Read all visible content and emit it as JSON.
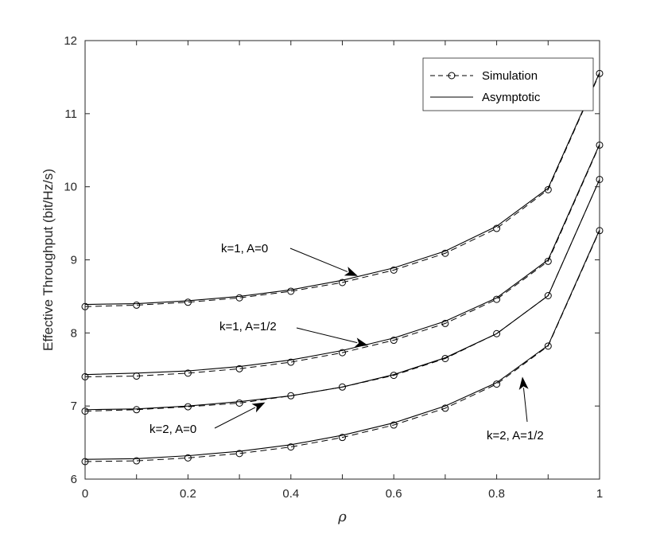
{
  "chart_data": {
    "type": "line",
    "xlabel": "ρ",
    "ylabel": "Effective Throughput (bit/Hz/s)",
    "xlim": [
      0,
      1
    ],
    "ylim": [
      6,
      12
    ],
    "xticks": [
      0,
      0.1,
      0.2,
      0.3,
      0.4,
      0.5,
      0.6,
      0.7,
      0.8,
      0.9,
      1
    ],
    "xtick_labels": [
      "0",
      "",
      "0.2",
      "",
      "0.4",
      "",
      "0.6",
      "",
      "0.8",
      "",
      "1"
    ],
    "yticks": [
      6,
      7,
      8,
      9,
      10,
      11,
      12
    ],
    "ytick_labels": [
      "6",
      "7",
      "8",
      "9",
      "10",
      "11",
      "12"
    ],
    "grid": false,
    "legend_position": "top-right",
    "legend": [
      {
        "label": "Simulation",
        "style": "dashed-circle"
      },
      {
        "label": "Asymptotic",
        "style": "solid"
      }
    ],
    "x": [
      0,
      0.1,
      0.2,
      0.3,
      0.4,
      0.5,
      0.6,
      0.7,
      0.8,
      0.9,
      1
    ],
    "curves": [
      {
        "annotation": "k=1, A=0",
        "simulation": [
          8.36,
          8.38,
          8.42,
          8.48,
          8.57,
          8.69,
          8.86,
          9.09,
          9.43,
          9.96,
          11.55
        ],
        "asymptotic": [
          8.39,
          8.4,
          8.44,
          8.5,
          8.59,
          8.72,
          8.89,
          9.12,
          9.46,
          9.98,
          11.56
        ]
      },
      {
        "annotation": "k=1, A=1/2",
        "simulation": [
          7.4,
          7.41,
          7.45,
          7.51,
          7.6,
          7.73,
          7.9,
          8.13,
          8.46,
          8.98,
          10.57
        ],
        "asymptotic": [
          7.43,
          7.45,
          7.48,
          7.54,
          7.63,
          7.76,
          7.93,
          8.16,
          8.48,
          9.0,
          10.58
        ]
      },
      {
        "annotation": "k=2, A=0",
        "simulation": [
          6.93,
          6.95,
          6.99,
          7.04,
          7.14,
          7.26,
          7.42,
          7.65,
          7.99,
          8.51,
          10.1
        ],
        "asymptotic": [
          6.95,
          6.96,
          7.0,
          7.06,
          7.14,
          7.26,
          7.43,
          7.66,
          7.99,
          8.51,
          10.1
        ]
      },
      {
        "annotation": "k=2, A=1/2",
        "simulation": [
          6.24,
          6.25,
          6.29,
          6.35,
          6.44,
          6.57,
          6.74,
          6.97,
          7.3,
          7.82,
          9.4
        ],
        "asymptotic": [
          6.27,
          6.28,
          6.32,
          6.38,
          6.47,
          6.6,
          6.77,
          7.0,
          7.32,
          7.83,
          9.41
        ]
      }
    ],
    "annotations": [
      {
        "text": "k=1, A=0",
        "arrow_to": [
          0.53,
          8.78
        ]
      },
      {
        "text": "k=1, A=1/2",
        "arrow_to": [
          0.55,
          7.83
        ]
      },
      {
        "text": "k=2, A=0",
        "arrow_to": [
          0.35,
          7.05
        ]
      },
      {
        "text": "k=2, A=1/2",
        "arrow_to": [
          0.85,
          7.4
        ]
      }
    ]
  }
}
